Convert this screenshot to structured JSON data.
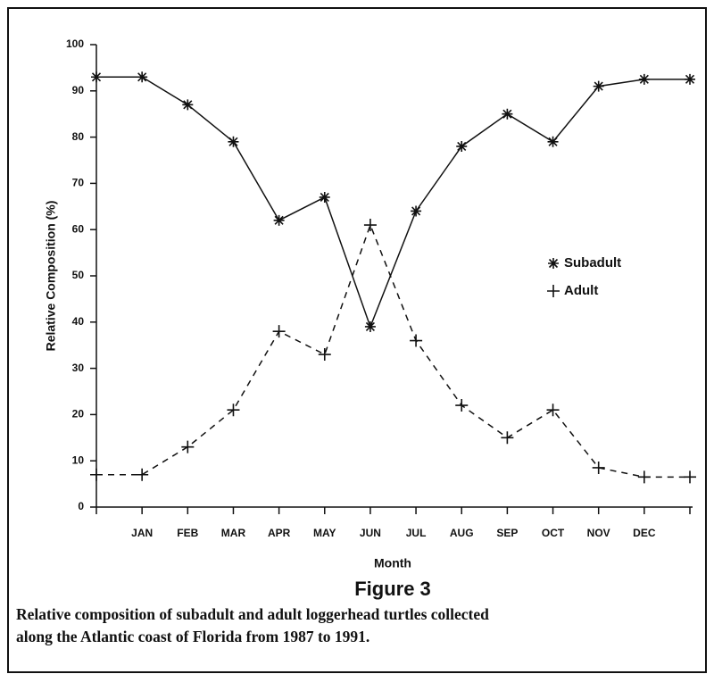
{
  "chart_data": {
    "type": "line",
    "x_label": "Month",
    "y_label": "Relative Composition (%)",
    "figure_label": "Figure 3",
    "caption": [
      "Relative composition of subadult and adult loggerhead turtles collected",
      "along the Atlantic coast of Florida from 1987 to 1991."
    ],
    "categories": [
      null,
      "JAN",
      "FEB",
      "MAR",
      "APR",
      "MAY",
      "JUN",
      "JUL",
      "AUG",
      "SEP",
      "OCT",
      "NOV",
      "DEC",
      null
    ],
    "series": [
      {
        "name": "Subadult",
        "color": "#111111",
        "marker": "asterisk",
        "line_style": "solid",
        "values": [
          93,
          93,
          87,
          79,
          62,
          67,
          39,
          64,
          78,
          85,
          79,
          91,
          92.5,
          92.5
        ]
      },
      {
        "name": "Adult",
        "color": "#111111",
        "marker": "plus",
        "line_style": "dashed",
        "values": [
          7,
          7,
          13,
          21,
          38,
          33,
          61,
          36,
          22,
          15,
          21,
          8.5,
          6.5,
          6.5
        ]
      }
    ],
    "ylim": [
      0,
      100
    ],
    "yticks": [
      0,
      10,
      20,
      30,
      40,
      50,
      60,
      70,
      80,
      90,
      100
    ],
    "grid": false,
    "legend": "right"
  }
}
